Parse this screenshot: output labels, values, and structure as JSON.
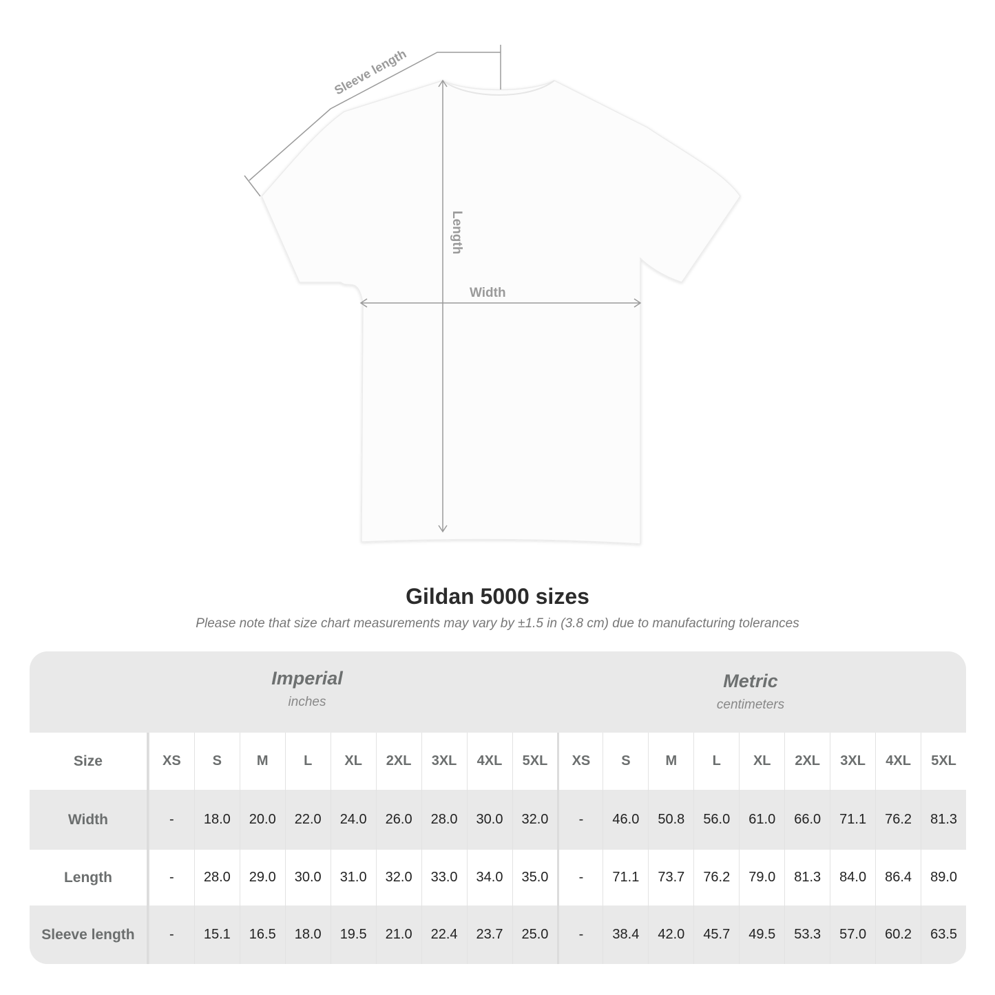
{
  "diagram": {
    "sleeve_label": "Sleeve length",
    "length_label": "Length",
    "width_label": "Width",
    "line_color": "#9a9a9a"
  },
  "title": "Gildan 5000 sizes",
  "note": "Please note that size chart measurements may vary by ±1.5 in (3.8 cm) due to manufacturing tolerances",
  "table": {
    "imperial": {
      "label": "Imperial",
      "unit": "inches"
    },
    "metric": {
      "label": "Metric",
      "unit": "centimeters"
    },
    "size_label": "Size",
    "sizes": [
      "XS",
      "S",
      "M",
      "L",
      "XL",
      "2XL",
      "3XL",
      "4XL",
      "5XL"
    ],
    "rows": [
      {
        "label": "Width",
        "imperial": [
          "-",
          "18.0",
          "20.0",
          "22.0",
          "24.0",
          "26.0",
          "28.0",
          "30.0",
          "32.0"
        ],
        "metric": [
          "-",
          "46.0",
          "50.8",
          "56.0",
          "61.0",
          "66.0",
          "71.1",
          "76.2",
          "81.3"
        ]
      },
      {
        "label": "Length",
        "imperial": [
          "-",
          "28.0",
          "29.0",
          "30.0",
          "31.0",
          "32.0",
          "33.0",
          "34.0",
          "35.0"
        ],
        "metric": [
          "-",
          "71.1",
          "73.7",
          "76.2",
          "79.0",
          "81.3",
          "84.0",
          "86.4",
          "89.0"
        ]
      },
      {
        "label": "Sleeve length",
        "imperial": [
          "-",
          "15.1",
          "16.5",
          "18.0",
          "19.5",
          "21.0",
          "22.4",
          "23.7",
          "25.0"
        ],
        "metric": [
          "-",
          "38.4",
          "42.0",
          "45.7",
          "49.5",
          "53.3",
          "57.0",
          "60.2",
          "63.5"
        ]
      }
    ]
  }
}
